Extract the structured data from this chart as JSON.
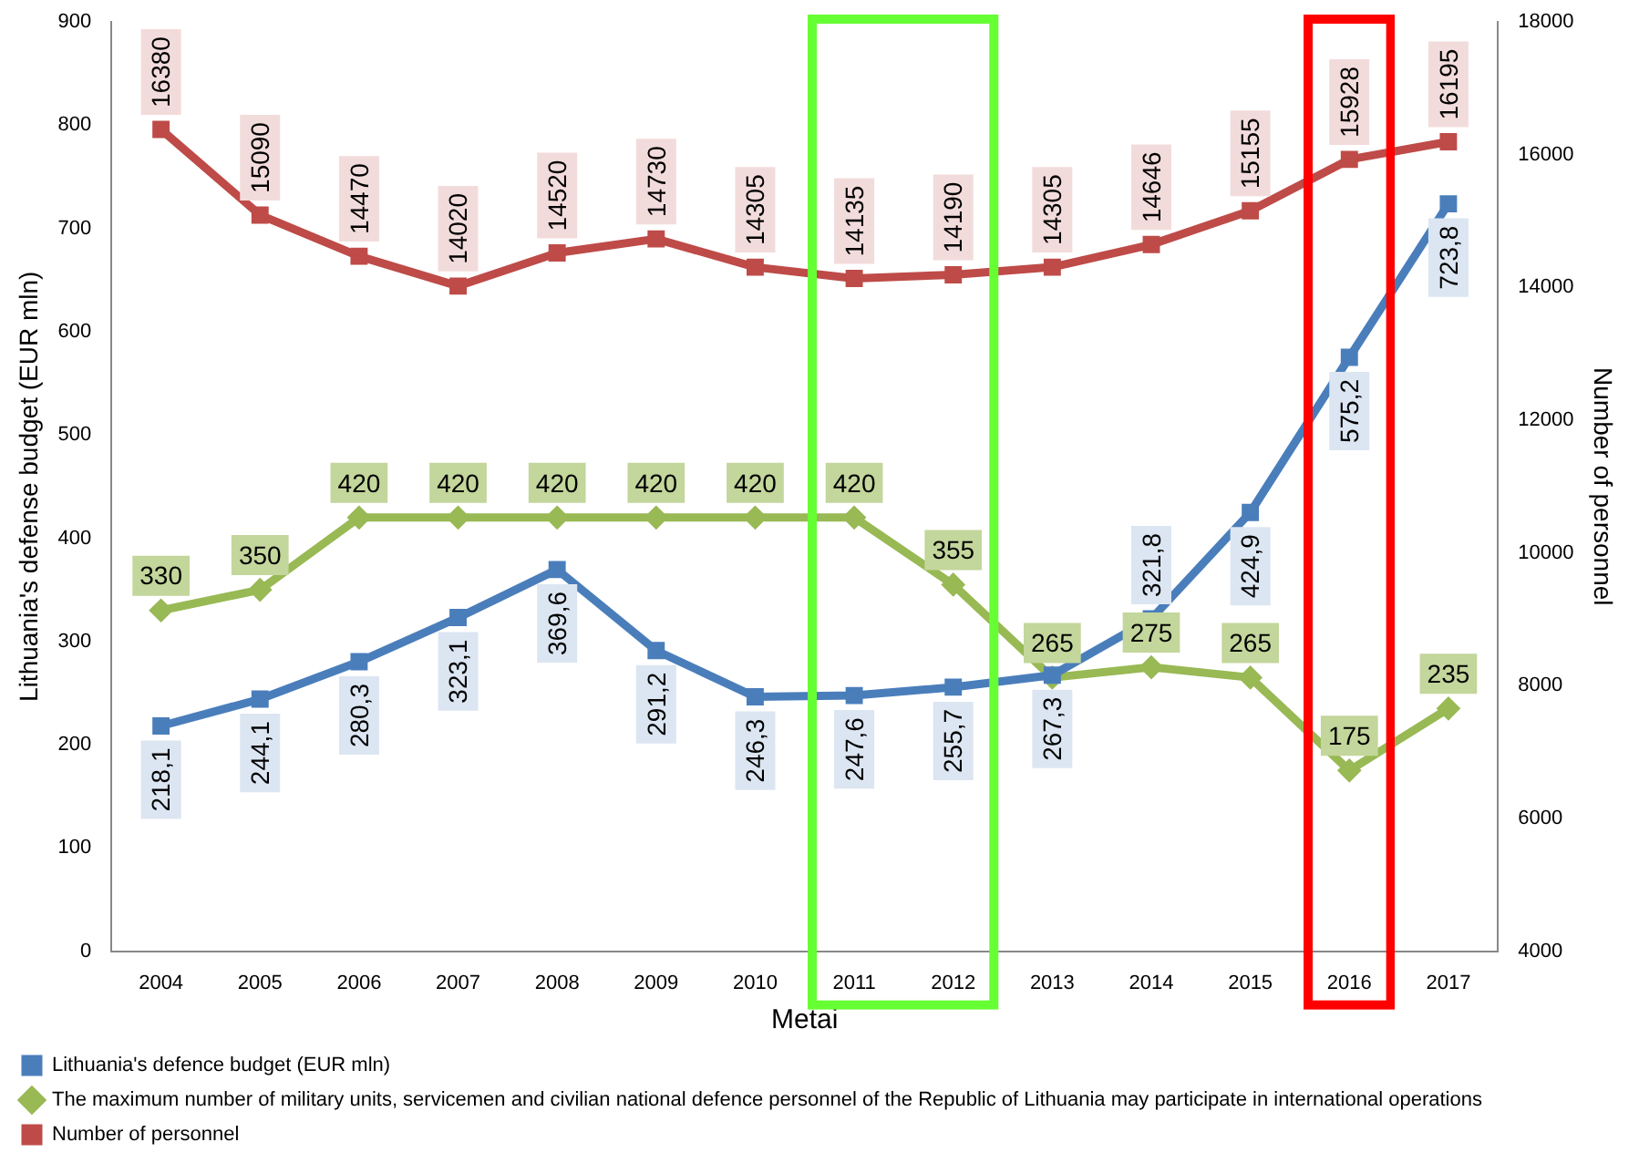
{
  "chart_data": {
    "type": "line",
    "xlabel": "Metai",
    "ylabel": "Lithuania's defense budget (EUR mln)",
    "y2label": "Number of personnel",
    "categories": [
      "2004",
      "2005",
      "2006",
      "2007",
      "2008",
      "2009",
      "2010",
      "2011",
      "2012",
      "2013",
      "2014",
      "2015",
      "2016",
      "2017"
    ],
    "series": [
      {
        "name": "Lithuania's defence budget (EUR mln)",
        "color": "#4a7ebb",
        "marker": "square",
        "values": [
          218.1,
          244.1,
          280.3,
          323.1,
          369.6,
          291.2,
          246.3,
          247.6,
          255.7,
          267.3,
          321.8,
          424.9,
          575.2,
          723.8
        ],
        "value_labels": [
          "218,1",
          "244,1",
          "280,3",
          "323,1",
          "369,6",
          "291,2",
          "246,3",
          "247,6",
          "255,7",
          "267,3",
          "321,8",
          "424,9",
          "575,2",
          "723,8"
        ]
      },
      {
        "name": "The maximum number of military units, servicemen and civilian national defence personnel of the Republic of Lithuania may participate in international operations",
        "color": "#98b954",
        "marker": "diamond",
        "values": [
          330,
          350,
          420,
          420,
          420,
          420,
          420,
          420,
          355,
          265,
          275,
          265,
          175,
          235
        ],
        "value_labels": [
          "330",
          "350",
          "420",
          "420",
          "420",
          "420",
          "420",
          "420",
          "355",
          "265",
          "275",
          "265",
          "175",
          "235"
        ]
      },
      {
        "name": "Number of personnel",
        "color": "#be4b48",
        "marker": "square",
        "axis": "y2",
        "values": [
          16380,
          15090,
          14470,
          14020,
          14520,
          14730,
          14305,
          14135,
          14190,
          14305,
          14646,
          15155,
          15928,
          16195
        ],
        "value_labels": [
          "16380",
          "15090",
          "14470",
          "14020",
          "14520",
          "14730",
          "14305",
          "14135",
          "14190",
          "14305",
          "14646",
          "15155",
          "15928",
          "16195"
        ]
      }
    ],
    "ylim": [
      0,
      900
    ],
    "yticks": [
      0,
      100,
      200,
      300,
      400,
      500,
      600,
      700,
      800,
      900
    ],
    "y2lim": [
      4000,
      18000
    ],
    "y2ticks": [
      4000,
      6000,
      8000,
      10000,
      12000,
      14000,
      16000,
      18000
    ],
    "grid": false,
    "legend": "bottom left",
    "line_style": "solid"
  }
}
